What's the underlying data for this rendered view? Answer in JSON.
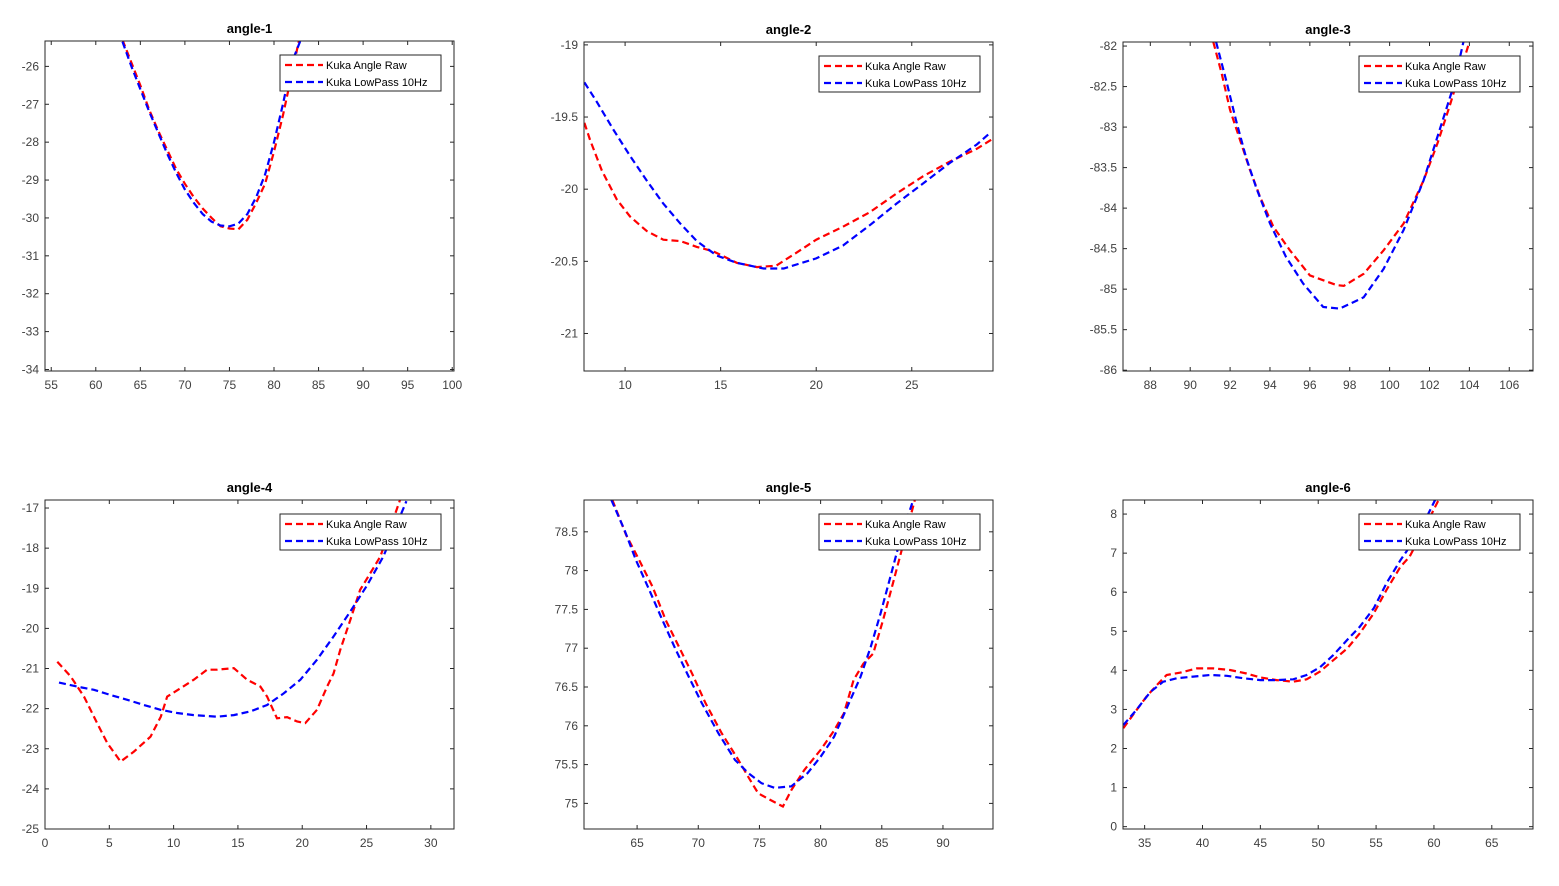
{
  "figure": {
    "colors": {
      "raw": "#ff0000",
      "lowpass": "#0000ff",
      "axes": "#262626"
    }
  },
  "chart_data": [
    {
      "type": "line",
      "title": "angle-1",
      "xlabel": "",
      "ylabel": "",
      "xlim": [
        54.3,
        100.2
      ],
      "ylim": [
        -34.04,
        -25.33
      ],
      "xticks": [
        55,
        60,
        65,
        70,
        75,
        80,
        85,
        90,
        95,
        100
      ],
      "yticks": [
        -34,
        -33,
        -32,
        -31,
        -30,
        -29,
        -28,
        -27,
        -26
      ],
      "legend": "top-right",
      "grid": false,
      "series": [
        {
          "name": "Kuka Angle Raw",
          "color": "#ff0000",
          "style": "dashed",
          "x": [
            63,
            64,
            65,
            66,
            67,
            68,
            69,
            70,
            71,
            72,
            73,
            74,
            75,
            76,
            77,
            78,
            79,
            80,
            81,
            82,
            83
          ],
          "y": [
            -25.3,
            -25.9,
            -26.5,
            -27.15,
            -27.7,
            -28.2,
            -28.7,
            -29.1,
            -29.45,
            -29.75,
            -30.0,
            -30.22,
            -30.28,
            -30.3,
            -30.05,
            -29.6,
            -29.1,
            -28.25,
            -27.3,
            -26.2,
            -25.1
          ]
        },
        {
          "name": "Kuka LowPass 10Hz",
          "color": "#0000ff",
          "style": "dashed",
          "x": [
            63,
            64,
            65,
            66,
            67,
            68,
            69,
            70,
            71,
            72,
            73,
            74,
            75,
            76,
            77,
            78,
            79,
            80,
            81,
            82,
            83
          ],
          "y": [
            -25.35,
            -26.0,
            -26.6,
            -27.2,
            -27.75,
            -28.3,
            -28.8,
            -29.25,
            -29.6,
            -29.9,
            -30.1,
            -30.2,
            -30.22,
            -30.15,
            -29.9,
            -29.45,
            -28.85,
            -28.0,
            -27.0,
            -25.9,
            -25.3
          ]
        }
      ]
    },
    {
      "type": "line",
      "title": "angle-2",
      "xlabel": "",
      "ylabel": "",
      "xlim": [
        7.85,
        29.25
      ],
      "ylim": [
        -21.26,
        -18.98
      ],
      "xticks": [
        10,
        15,
        20,
        25
      ],
      "yticks": [
        -21,
        -20.5,
        -20,
        -19.5,
        -19
      ],
      "legend": "top-right",
      "grid": false,
      "series": [
        {
          "name": "Kuka Angle Raw",
          "color": "#ff0000",
          "style": "dashed",
          "x": [
            7.87,
            8.17,
            8.78,
            9.56,
            10.26,
            11.13,
            12.0,
            12.9,
            13.75,
            14.6,
            15.84,
            16.9,
            17.9,
            18.97,
            20.0,
            21.4,
            22.8,
            24.2,
            25.6,
            26.97,
            28.4,
            29.25
          ],
          "y": [
            -19.54,
            -19.66,
            -19.87,
            -20.07,
            -20.19,
            -20.29,
            -20.35,
            -20.36,
            -20.4,
            -20.43,
            -20.51,
            -20.54,
            -20.53,
            -20.44,
            -20.35,
            -20.26,
            -20.16,
            -20.03,
            -19.91,
            -19.81,
            -19.72,
            -19.65
          ]
        },
        {
          "name": "Kuka LowPass 10Hz",
          "color": "#0000ff",
          "style": "dashed",
          "x": [
            7.87,
            8.5,
            9.4,
            10.26,
            11.13,
            12.0,
            12.9,
            13.75,
            14.8,
            15.84,
            17.24,
            18.3,
            20.0,
            21.4,
            22.8,
            24.2,
            25.6,
            26.97,
            28.4,
            29.1
          ],
          "y": [
            -19.26,
            -19.39,
            -19.59,
            -19.77,
            -19.94,
            -20.1,
            -20.24,
            -20.36,
            -20.46,
            -20.51,
            -20.55,
            -20.55,
            -20.48,
            -20.39,
            -20.25,
            -20.1,
            -19.96,
            -19.82,
            -19.69,
            -19.61
          ]
        }
      ]
    },
    {
      "type": "line",
      "title": "angle-3",
      "xlabel": "",
      "ylabel": "",
      "xlim": [
        86.63,
        107.19
      ],
      "ylim": [
        -86.01,
        -81.95
      ],
      "xticks": [
        88,
        90,
        92,
        94,
        96,
        98,
        100,
        102,
        104,
        106
      ],
      "yticks": [
        -86,
        -85.5,
        -85,
        -84.5,
        -84,
        -83.5,
        -83,
        -82.5,
        -82
      ],
      "legend": "top-right",
      "grid": false,
      "series": [
        {
          "name": "Kuka Angle Raw",
          "color": "#ff0000",
          "style": "dashed",
          "x": [
            91.16,
            91.58,
            92.0,
            92.5,
            93.0,
            93.5,
            94.17,
            95.0,
            96.0,
            97.34,
            97.7,
            98.7,
            99.7,
            100.7,
            101.7,
            102.4,
            103.0,
            104.0
          ],
          "y": [
            -81.95,
            -82.34,
            -82.79,
            -83.16,
            -83.53,
            -83.86,
            -84.23,
            -84.52,
            -84.83,
            -84.95,
            -84.96,
            -84.81,
            -84.52,
            -84.19,
            -83.66,
            -83.2,
            -82.75,
            -81.95
          ]
        },
        {
          "name": "Kuka LowPass 10Hz",
          "color": "#0000ff",
          "style": "dashed",
          "x": [
            91.3,
            91.8,
            92.3,
            92.8,
            93.3,
            94.0,
            94.8,
            95.66,
            96.67,
            97.5,
            98.7,
            99.7,
            100.7,
            101.7,
            102.5,
            103.2,
            103.7
          ],
          "y": [
            -81.95,
            -82.42,
            -82.92,
            -83.37,
            -83.74,
            -84.19,
            -84.6,
            -84.93,
            -85.22,
            -85.24,
            -85.1,
            -84.75,
            -84.27,
            -83.66,
            -83.04,
            -82.5,
            -81.95
          ]
        }
      ]
    },
    {
      "type": "line",
      "title": "angle-4",
      "xlabel": "",
      "ylabel": "",
      "xlim": [
        0,
        31.8
      ],
      "ylim": [
        -25,
        -16.8
      ],
      "xticks": [
        0,
        5,
        10,
        15,
        20,
        25,
        30
      ],
      "yticks": [
        -25,
        -24,
        -23,
        -22,
        -21,
        -20,
        -19,
        -18,
        -17
      ],
      "legend": "top-right",
      "grid": false,
      "series": [
        {
          "name": "Kuka Angle Raw",
          "color": "#ff0000",
          "style": "dashed",
          "x": [
            0.96,
            2.0,
            3.03,
            4.05,
            4.84,
            5.88,
            6.91,
            8.2,
            9.0,
            9.5,
            10.54,
            11.57,
            12.6,
            13.38,
            14.68,
            15.71,
            16.75,
            17.27,
            18.04,
            18.82,
            19.6,
            20.24,
            21.15,
            21.93,
            22.44,
            22.96,
            23.74,
            24.5,
            25.3,
            26.07,
            27.6
          ],
          "y": [
            -20.83,
            -21.2,
            -21.7,
            -22.36,
            -22.86,
            -23.32,
            -23.07,
            -22.7,
            -22.2,
            -21.7,
            -21.49,
            -21.28,
            -21.03,
            -21.03,
            -20.99,
            -21.28,
            -21.45,
            -21.7,
            -22.24,
            -22.21,
            -22.32,
            -22.36,
            -22.03,
            -21.45,
            -21.12,
            -20.53,
            -19.79,
            -19.04,
            -18.62,
            -18.21,
            -16.8
          ]
        },
        {
          "name": "Kuka LowPass 10Hz",
          "color": "#0000ff",
          "style": "dashed",
          "x": [
            1.09,
            2.5,
            3.8,
            5.1,
            6.39,
            7.69,
            8.98,
            10.28,
            11.57,
            13.38,
            14.68,
            15.97,
            17.27,
            18.56,
            19.86,
            21.15,
            22.44,
            23.74,
            25.0,
            26.3,
            28.1
          ],
          "y": [
            -21.35,
            -21.45,
            -21.53,
            -21.66,
            -21.78,
            -21.91,
            -22.03,
            -22.11,
            -22.16,
            -22.2,
            -22.16,
            -22.07,
            -21.91,
            -21.62,
            -21.28,
            -20.78,
            -20.2,
            -19.58,
            -18.95,
            -18.21,
            -16.83
          ]
        }
      ]
    },
    {
      "type": "line",
      "title": "angle-5",
      "xlabel": "",
      "ylabel": "",
      "xlim": [
        60.66,
        94.09
      ],
      "ylim": [
        74.67,
        78.91
      ],
      "xticks": [
        65,
        70,
        75,
        80,
        85,
        90
      ],
      "yticks": [
        75,
        75.5,
        76,
        76.5,
        77,
        77.5,
        78,
        78.5
      ],
      "legend": "top-right",
      "grid": false,
      "series": [
        {
          "name": "Kuka Angle Raw",
          "color": "#ff0000",
          "style": "dashed",
          "x": [
            62.98,
            64.1,
            65.19,
            66.27,
            67.35,
            68.42,
            69.5,
            70.6,
            71.93,
            73.28,
            74.09,
            74.9,
            75.7,
            76.92,
            77.6,
            78.67,
            80.0,
            81.1,
            81.9,
            82.7,
            83.5,
            84.3,
            85.1,
            85.9,
            86.7,
            87.7
          ],
          "y": [
            78.91,
            78.46,
            78.13,
            77.79,
            77.36,
            77.02,
            76.67,
            76.29,
            75.9,
            75.56,
            75.34,
            75.13,
            75.06,
            74.96,
            75.17,
            75.43,
            75.69,
            75.94,
            76.16,
            76.59,
            76.8,
            76.93,
            77.36,
            77.83,
            78.31,
            78.91
          ]
        },
        {
          "name": "Kuka LowPass 10Hz",
          "color": "#0000ff",
          "style": "dashed",
          "x": [
            62.9,
            63.98,
            64.92,
            66.0,
            67.08,
            68.16,
            69.23,
            70.3,
            71.66,
            73.0,
            74.09,
            75.17,
            76.25,
            77.6,
            78.94,
            80.0,
            81.1,
            82.2,
            83.26,
            84.1,
            84.9,
            85.7,
            86.5,
            87.57
          ],
          "y": [
            78.91,
            78.52,
            78.13,
            77.75,
            77.36,
            76.98,
            76.63,
            76.29,
            75.9,
            75.56,
            75.39,
            75.26,
            75.2,
            75.22,
            75.39,
            75.6,
            75.86,
            76.25,
            76.63,
            77.02,
            77.45,
            77.92,
            78.39,
            78.91
          ]
        }
      ]
    },
    {
      "type": "line",
      "title": "angle-6",
      "xlabel": "",
      "ylabel": "",
      "xlim": [
        33.13,
        68.56
      ],
      "ylim": [
        -0.06,
        8.36
      ],
      "xticks": [
        35,
        40,
        45,
        50,
        55,
        60,
        65
      ],
      "yticks": [
        0,
        1,
        2,
        3,
        4,
        5,
        6,
        7,
        8
      ],
      "legend": "top-right",
      "grid": false,
      "series": [
        {
          "name": "Kuka Angle Raw",
          "color": "#ff0000",
          "style": "dashed",
          "x": [
            33.16,
            34.31,
            35.17,
            36.04,
            36.9,
            38.05,
            39.5,
            40.94,
            42.38,
            43.8,
            45.0,
            46.4,
            47.85,
            49.0,
            50.16,
            51.3,
            52.5,
            53.6,
            54.8,
            55.9,
            57.1,
            57.9,
            59.1,
            60.4
          ],
          "y": [
            2.52,
            2.99,
            3.33,
            3.62,
            3.88,
            3.94,
            4.05,
            4.05,
            4.01,
            3.92,
            3.82,
            3.75,
            3.71,
            3.77,
            3.97,
            4.26,
            4.56,
            4.95,
            5.46,
            6.06,
            6.65,
            6.91,
            7.59,
            8.36
          ]
        },
        {
          "name": "Kuka LowPass 10Hz",
          "color": "#0000ff",
          "style": "dashed",
          "x": [
            33.16,
            34.3,
            35.5,
            36.6,
            37.8,
            39.2,
            40.65,
            42.1,
            43.5,
            45.0,
            46.4,
            47.85,
            49.0,
            50.16,
            51.3,
            52.5,
            53.6,
            54.8,
            55.9,
            57.1,
            57.9,
            59.1,
            60.1
          ],
          "y": [
            2.6,
            2.99,
            3.45,
            3.71,
            3.8,
            3.84,
            3.88,
            3.86,
            3.8,
            3.75,
            3.75,
            3.77,
            3.88,
            4.08,
            4.39,
            4.78,
            5.12,
            5.59,
            6.23,
            6.82,
            7.16,
            7.76,
            8.36
          ]
        }
      ]
    }
  ]
}
